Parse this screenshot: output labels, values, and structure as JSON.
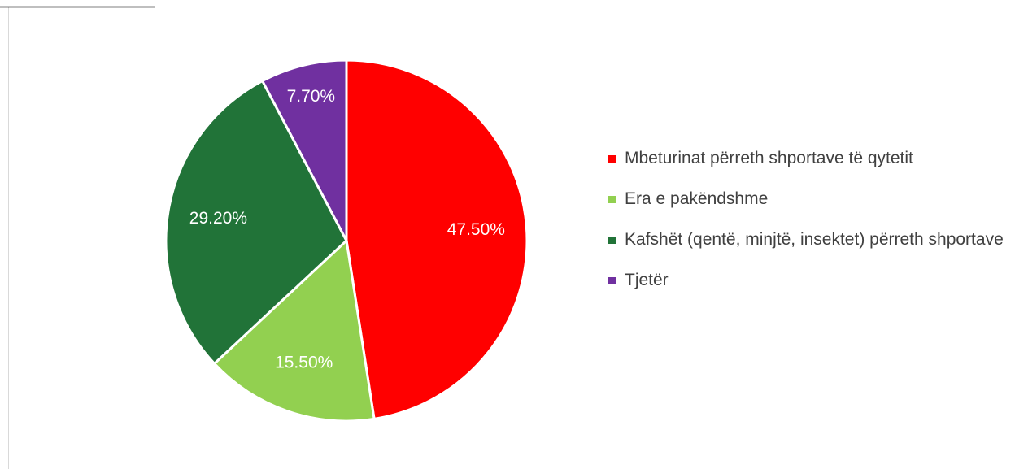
{
  "chart_data": {
    "type": "pie",
    "categories": [
      "Mbeturinat përreth shportave të qytetit",
      "Era e pakëndshme",
      "Kafshët (qentë, minjtë, insektet) përreth shportave",
      "Tjetër"
    ],
    "values": [
      47.5,
      15.5,
      29.2,
      7.7
    ],
    "value_labels": [
      "47.50%",
      "15.50%",
      "29.20%",
      "7.70%"
    ],
    "colors": [
      "#ff0000",
      "#92d050",
      "#217338",
      "#7030a0"
    ],
    "legend": "right"
  }
}
